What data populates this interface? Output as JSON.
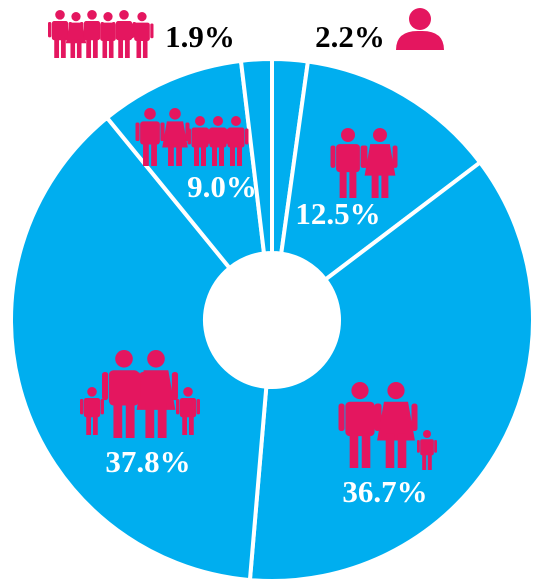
{
  "chart_data": {
    "type": "donut",
    "values": [
      2.2,
      12.5,
      36.7,
      37.8,
      9.0,
      1.9
    ],
    "value_labels": [
      "2.2%",
      "12.5%",
      "36.7%",
      "37.8%",
      "9.0%",
      "1.9%"
    ],
    "color": "#00aeef",
    "icon_color": "#e4165f"
  }
}
